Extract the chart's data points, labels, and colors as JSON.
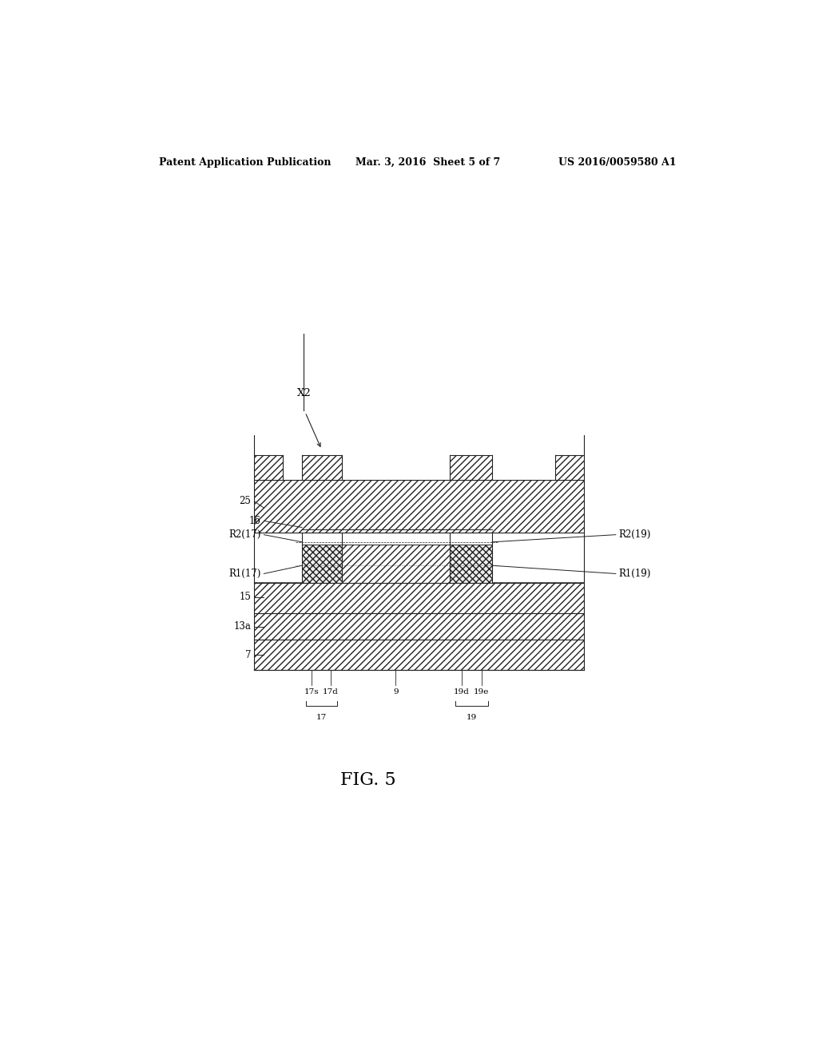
{
  "title": "",
  "header_left": "Patent Application Publication",
  "header_mid": "Mar. 3, 2016  Sheet 5 of 7",
  "header_right": "US 2016/0059580 A1",
  "fig_label": "FIG. 5",
  "bg_color": "#ffffff",
  "line_color": "#222222",
  "hatch_color": "#333333",
  "label_fontsize": 9,
  "header_fontsize": 9,
  "fig_label_fontsize": 16
}
